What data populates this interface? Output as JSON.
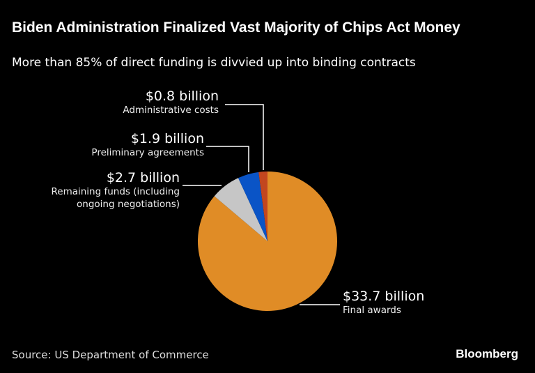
{
  "title": "Biden Administration Finalized Vast Majority of Chips Act Money",
  "subtitle": "More than 85% of direct funding is divvied up into binding contracts",
  "source": "Source: US Department of Commerce",
  "logo": "Bloomberg",
  "chart_data": {
    "type": "pie",
    "unit": "billion USD",
    "slices": [
      {
        "label": "Final awards",
        "value": 33.7,
        "value_label": "$33.7 billion",
        "color": "#e08c26"
      },
      {
        "label": "Remaining funds (including ongoing negotiations)",
        "value": 2.7,
        "value_label": "$2.7 billion",
        "color": "#c6c6c6"
      },
      {
        "label": "Preliminary agreements",
        "value": 1.9,
        "value_label": "$1.9 billion",
        "color": "#0a54c6"
      },
      {
        "label": "Administrative costs",
        "value": 0.8,
        "value_label": "$0.8 billion",
        "color": "#c2461f"
      }
    ]
  }
}
